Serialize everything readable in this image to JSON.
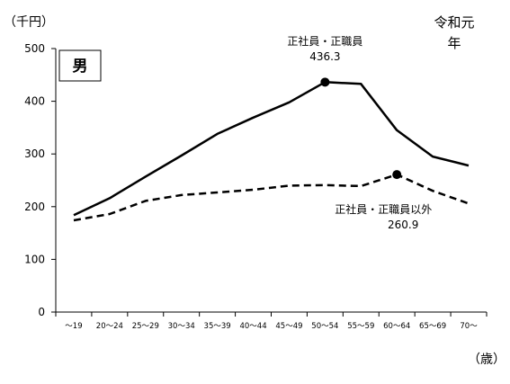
{
  "chart_data": {
    "type": "line",
    "title": "男",
    "year_label_line1": "令和元",
    "year_label_line2": "年",
    "ylabel": "（千円）",
    "xlabel": "（歳）",
    "ylim": [
      0,
      500
    ],
    "yticks": [
      "0",
      "100",
      "200",
      "300",
      "400",
      "500"
    ],
    "categories": [
      "～19",
      "20～24",
      "25～29",
      "30～34",
      "35～39",
      "40～44",
      "45～49",
      "50～54",
      "55～59",
      "60～64",
      "65～69",
      "70～"
    ],
    "grid": false,
    "series": [
      {
        "name": "正社員・正職員",
        "style": "solid",
        "values": [
          184,
          216,
          257,
          297,
          338,
          369,
          398,
          436.3,
          433,
          345,
          295,
          278
        ]
      },
      {
        "name": "正社員・正職員以外",
        "style": "dashed",
        "values": [
          174,
          186,
          211,
          222,
          227,
          232,
          240,
          241,
          239,
          260.9,
          230,
          206
        ]
      }
    ],
    "annotations": [
      {
        "series": 0,
        "index": 7,
        "label": "正社員・正職員",
        "value_label": "436.3"
      },
      {
        "series": 1,
        "index": 9,
        "label": "正社員・正職員以外",
        "value_label": "260.9"
      }
    ]
  }
}
